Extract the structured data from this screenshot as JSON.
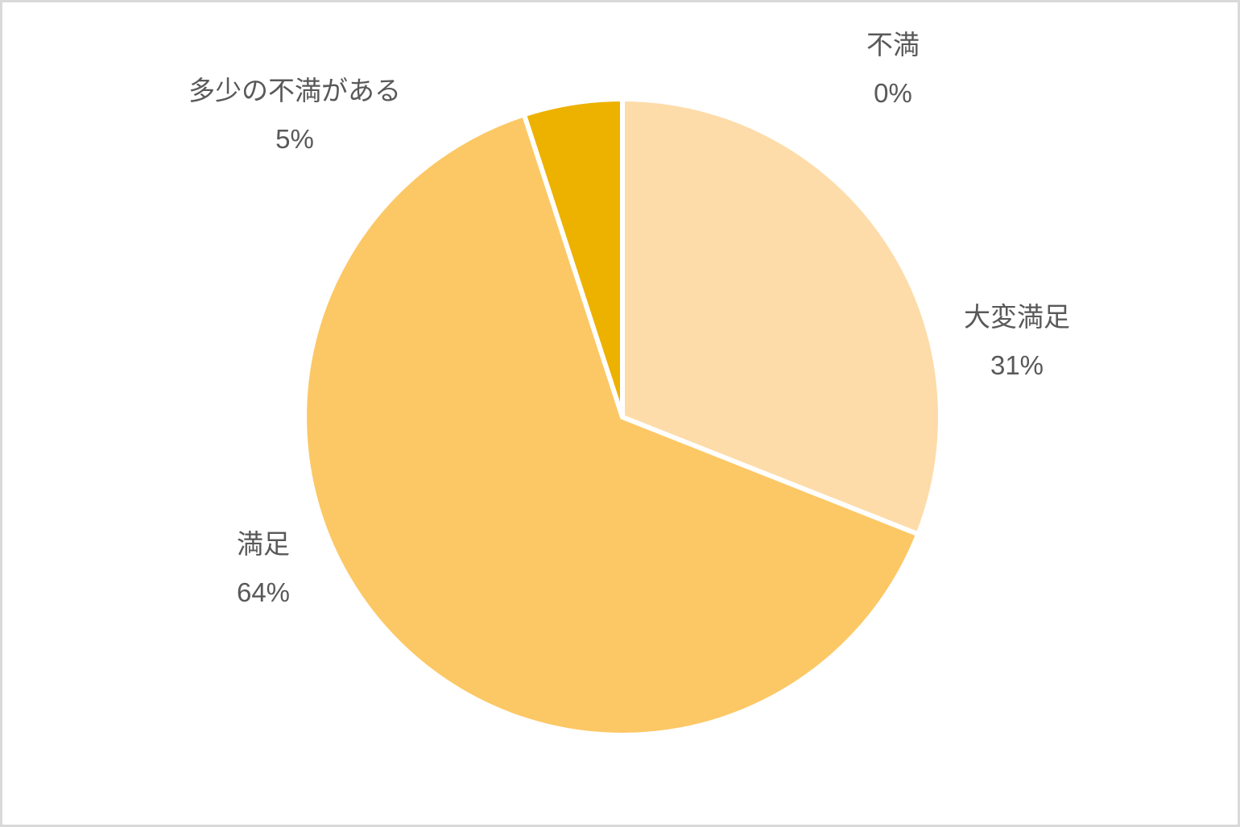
{
  "chart_data": {
    "type": "pie",
    "title": "",
    "slices": [
      {
        "label": "不満",
        "value": 0,
        "pct_label": "0%",
        "color": null
      },
      {
        "label": "大変満足",
        "value": 31,
        "pct_label": "31%",
        "color": "#FDDCA9"
      },
      {
        "label": "満足",
        "value": 64,
        "pct_label": "64%",
        "color": "#FCC865"
      },
      {
        "label": "多少の不満がある",
        "value": 5,
        "pct_label": "5%",
        "color": "#EDB100"
      }
    ],
    "start_angle_deg": 0,
    "direction": "clockwise",
    "label_position": "outside",
    "legend": "none",
    "separator_color": "#FFFFFF",
    "text_color": "#595959",
    "background": "#FFFFFF",
    "frame_border_color": "#D9D9D9"
  }
}
